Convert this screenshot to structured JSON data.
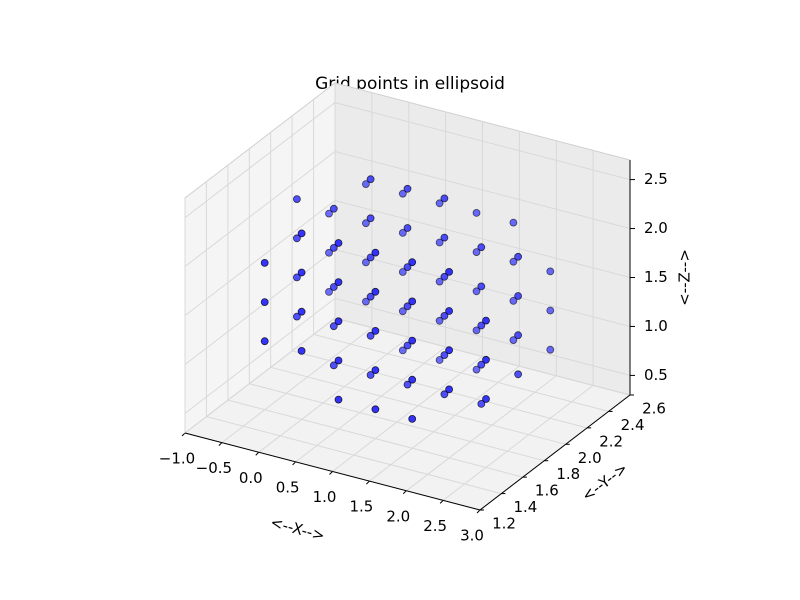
{
  "chart_data": {
    "type": "scatter3d",
    "title": "Grid points in ellipsoid",
    "xlabel": "<--X-->",
    "ylabel": "<--Y-->",
    "zlabel": "<--Z-->",
    "xlim": [
      -1,
      3
    ],
    "ylim": [
      1.2,
      2.6
    ],
    "zlim": [
      0.3,
      2.7
    ],
    "xticks": [
      {
        "value": -1,
        "label": "−1.0"
      },
      {
        "value": -0.5,
        "label": "−0.5"
      },
      {
        "value": 0,
        "label": "0.0"
      },
      0.5,
      {
        "value": 1,
        "label": "1.0"
      },
      1.5,
      {
        "value": 2,
        "label": "2.0"
      },
      2.5,
      {
        "value": 3,
        "label": "3.0"
      }
    ],
    "yticks": [
      1.2,
      1.4,
      1.6,
      1.8,
      {
        "value": 2,
        "label": "2.0"
      },
      2.2,
      2.4,
      2.6
    ],
    "zticks": [
      0.5,
      {
        "value": 1,
        "label": "1.0"
      },
      1.5,
      {
        "value": 2,
        "label": "2.0"
      },
      2.5
    ],
    "grid": true,
    "series": [
      {
        "color": "#0000ff",
        "x": [
          -0.5,
          -0.5,
          -0.5,
          -0.5,
          -0.5,
          -0.5,
          -0.5,
          -0.5,
          -0.5,
          -0.5,
          0,
          0,
          0,
          0,
          0,
          0,
          0,
          0,
          0,
          0,
          0,
          0,
          0,
          0.5,
          0.5,
          0.5,
          0.5,
          0.5,
          0.5,
          0.5,
          0.5,
          0.5,
          0.5,
          0.5,
          0.5,
          0.5,
          0.5,
          0.5,
          0.5,
          1,
          1,
          1,
          1,
          1,
          1,
          1,
          1,
          1,
          1,
          1,
          1,
          1,
          1,
          1,
          1,
          1.5,
          1.5,
          1.5,
          1.5,
          1.5,
          1.5,
          1.5,
          1.5,
          1.5,
          1.5,
          1.5,
          1.5,
          1.5,
          1.5,
          1.5,
          1.5,
          2,
          2,
          2,
          2,
          2,
          2,
          2,
          2,
          2,
          2,
          2,
          2,
          2,
          2.5,
          2.5,
          2.5,
          2.5,
          2.5,
          2.5,
          2.5,
          2.5,
          2.5,
          2.5
        ],
        "y": [
          1.6,
          1.6,
          1.6,
          1.9,
          1.9,
          1.9,
          1.9,
          2.2,
          2.2,
          2.2,
          1.6,
          1.6,
          1.6,
          1.6,
          1.9,
          1.9,
          1.9,
          1.9,
          1.9,
          2.2,
          2.2,
          2.2,
          2.2,
          1.6,
          1.6,
          1.6,
          1.6,
          1.6,
          1.9,
          1.9,
          1.9,
          1.9,
          1.9,
          1.9,
          2.2,
          2.2,
          2.2,
          2.2,
          2.2,
          1.6,
          1.6,
          1.6,
          1.6,
          1.6,
          1.9,
          1.9,
          1.9,
          1.9,
          1.9,
          1.9,
          2.2,
          2.2,
          2.2,
          2.2,
          2.2,
          1.6,
          1.6,
          1.6,
          1.6,
          1.6,
          1.9,
          1.9,
          1.9,
          1.9,
          1.9,
          1.9,
          2.2,
          2.2,
          2.2,
          2.2,
          2.2,
          1.6,
          1.6,
          1.6,
          1.6,
          1.9,
          1.9,
          1.9,
          1.9,
          1.9,
          2.2,
          2.2,
          2.2,
          2.2,
          1.6,
          1.6,
          1.6,
          1.9,
          1.9,
          1.9,
          1.9,
          2.2,
          2.2,
          2.2
        ],
        "z": [
          1,
          1.4,
          1.8,
          1,
          1.4,
          1.8,
          2.2,
          1,
          1.4,
          1.8,
          1,
          1.4,
          1.8,
          2.2,
          0.6,
          1,
          1.4,
          1.8,
          2.2,
          1,
          1.4,
          1.8,
          2.2,
          0.6,
          1,
          1.4,
          1.8,
          2.2,
          0.6,
          1,
          1.4,
          1.8,
          2.2,
          2.6,
          0.6,
          1,
          1.4,
          1.8,
          2.2,
          0.6,
          1,
          1.4,
          1.8,
          2.2,
          0.6,
          1,
          1.4,
          1.8,
          2.2,
          2.6,
          0.6,
          1,
          1.4,
          1.8,
          2.2,
          0.6,
          1,
          1.4,
          1.8,
          2.2,
          0.6,
          1,
          1.4,
          1.8,
          2.2,
          2.6,
          0.6,
          1,
          1.4,
          1.8,
          2.2,
          1,
          1.4,
          1.8,
          2.2,
          0.6,
          1,
          1.4,
          1.8,
          2.2,
          1,
          1.4,
          1.8,
          2.2,
          1,
          1.4,
          1.8,
          1,
          1.4,
          1.8,
          2.2,
          1,
          1.4,
          1.8
        ]
      }
    ]
  }
}
